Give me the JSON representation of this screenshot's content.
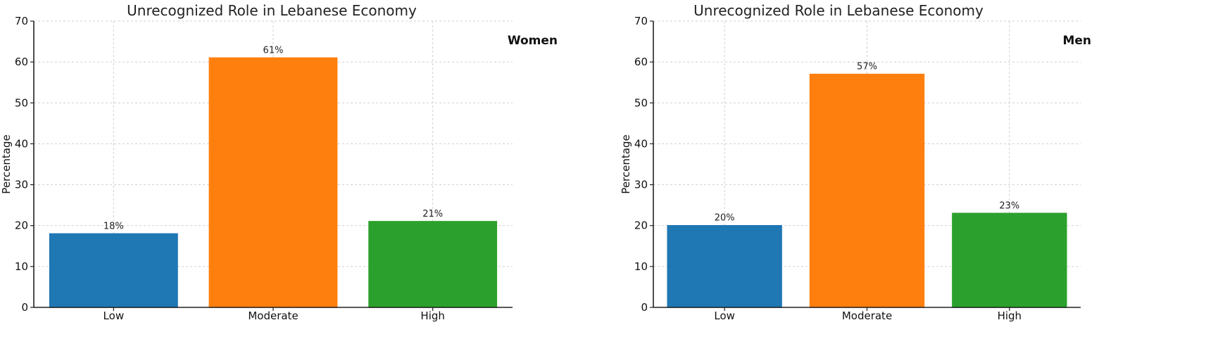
{
  "chart_data": [
    {
      "type": "bar",
      "title": "Unrecognized Role in Lebanese Economy",
      "panel_label": "Women",
      "ylabel": "Percentage",
      "xlabel": "",
      "categories": [
        "Low",
        "Moderate",
        "High"
      ],
      "values": [
        18,
        61,
        21
      ],
      "data_labels": [
        "18%",
        "61%",
        "21%"
      ],
      "colors": [
        "#1f77b4",
        "#ff7f0e",
        "#2ca02c"
      ],
      "ylim": [
        0,
        70
      ],
      "yticks": [
        0,
        10,
        20,
        30,
        40,
        50,
        60,
        70
      ],
      "grid": true,
      "legend": "none"
    },
    {
      "type": "bar",
      "title": "Unrecognized Role in Lebanese Economy",
      "panel_label": "Men",
      "ylabel": "Percentage",
      "xlabel": "",
      "categories": [
        "Low",
        "Moderate",
        "High"
      ],
      "values": [
        20,
        57,
        23
      ],
      "data_labels": [
        "20%",
        "57%",
        "23%"
      ],
      "colors": [
        "#1f77b4",
        "#ff7f0e",
        "#2ca02c"
      ],
      "ylim": [
        0,
        70
      ],
      "yticks": [
        0,
        10,
        20,
        30,
        40,
        50,
        60,
        70
      ],
      "grid": true,
      "legend": "none"
    }
  ]
}
